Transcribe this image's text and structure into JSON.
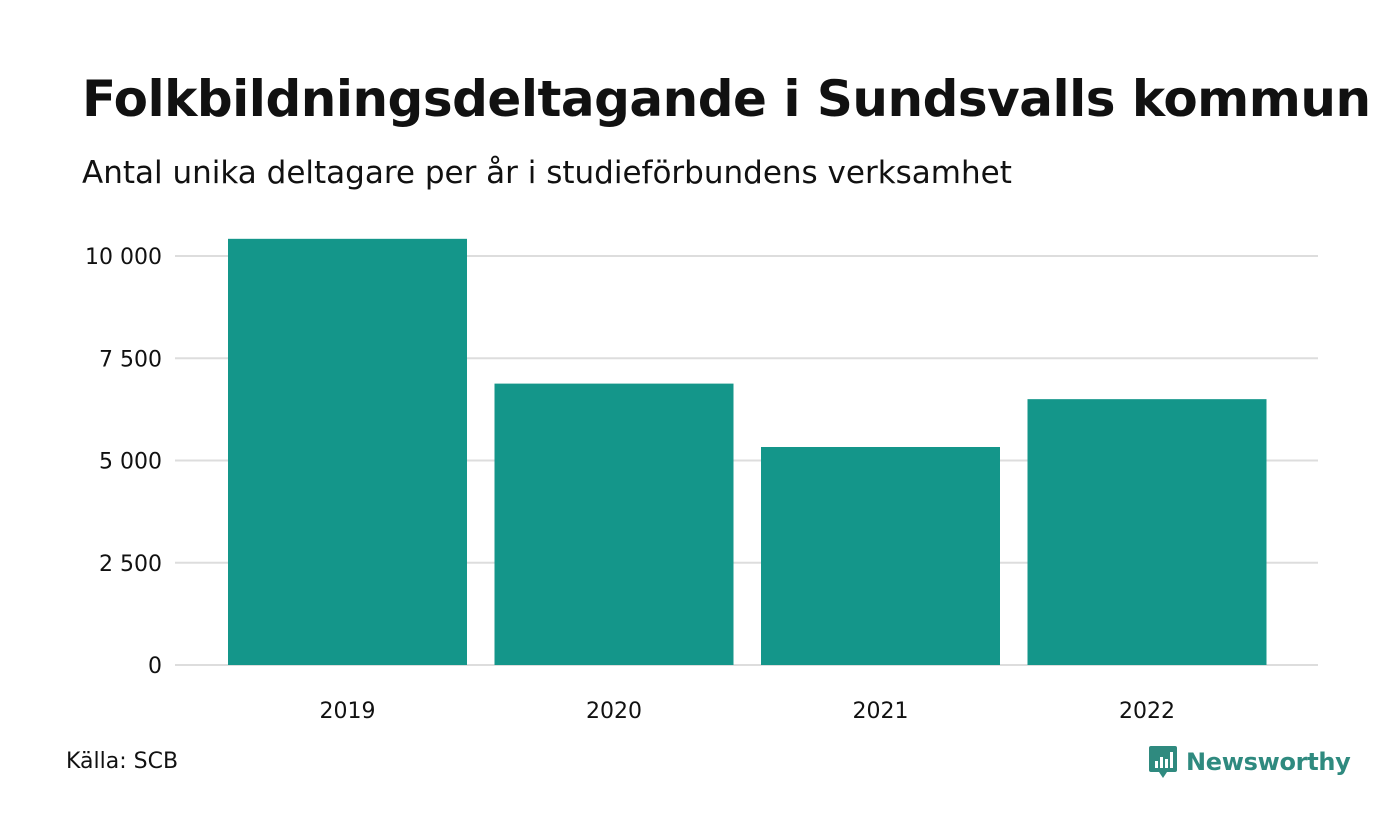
{
  "header": {
    "title": "Folkbildningsdeltagande i Sundsvalls kommun",
    "subtitle": "Antal unika deltagare per år i studieförbundens verksamhet"
  },
  "footer": {
    "source": "Källa: SCB",
    "brand": "Newsworthy"
  },
  "colors": {
    "bar": "#14968a",
    "brand": "#2f8a7f",
    "grid": "#dddddd",
    "text": "#111111"
  },
  "chart_data": {
    "type": "bar",
    "categories": [
      "2019",
      "2020",
      "2021",
      "2022"
    ],
    "values": [
      10420,
      6880,
      5330,
      6500
    ],
    "ylim": [
      0,
      10000
    ],
    "yticks": [
      0,
      2500,
      5000,
      7500,
      10000
    ],
    "ytick_labels": [
      "0",
      "2 500",
      "5 000",
      "7 500",
      "10 000"
    ],
    "grid": true,
    "title": "Folkbildningsdeltagande i Sundsvalls kommun",
    "subtitle": "Antal unika deltagare per år i studieförbundens verksamhet"
  }
}
